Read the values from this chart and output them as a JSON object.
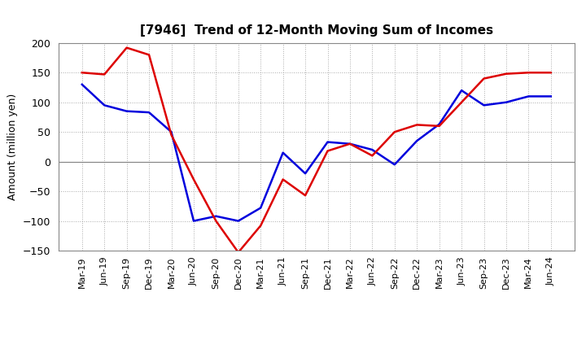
{
  "title": "[7946]  Trend of 12-Month Moving Sum of Incomes",
  "ylabel": "Amount (million yen)",
  "ylim": [
    -150,
    200
  ],
  "yticks": [
    -150,
    -100,
    -50,
    0,
    50,
    100,
    150,
    200
  ],
  "background_color": "#ffffff",
  "grid_color": "#aaaaaa",
  "zero_line_color": "#888888",
  "ordinary_income_color": "#0000dd",
  "net_income_color": "#dd0000",
  "line_width": 1.8,
  "x_labels": [
    "Mar-19",
    "Jun-19",
    "Sep-19",
    "Dec-19",
    "Mar-20",
    "Jun-20",
    "Sep-20",
    "Dec-20",
    "Mar-21",
    "Jun-21",
    "Sep-21",
    "Dec-21",
    "Mar-22",
    "Jun-22",
    "Sep-22",
    "Dec-22",
    "Mar-23",
    "Jun-23",
    "Sep-23",
    "Dec-23",
    "Mar-24",
    "Jun-24"
  ],
  "ordinary_income": [
    130,
    95,
    85,
    83,
    50,
    -100,
    -92,
    -100,
    -78,
    15,
    -20,
    33,
    30,
    20,
    -5,
    35,
    63,
    120,
    95,
    100,
    110,
    110
  ],
  "net_income": [
    150,
    147,
    192,
    180,
    45,
    -30,
    -100,
    -153,
    -108,
    -30,
    -57,
    18,
    30,
    10,
    50,
    62,
    60,
    100,
    140,
    148,
    150,
    150
  ]
}
